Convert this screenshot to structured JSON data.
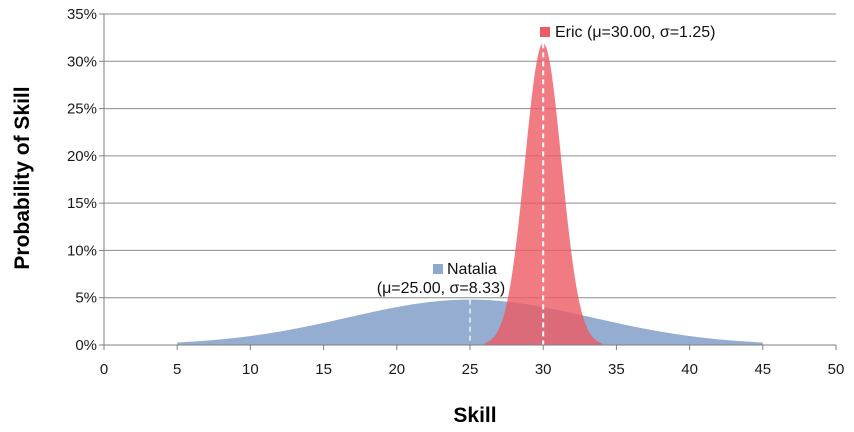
{
  "chart_data": {
    "type": "area",
    "title": "",
    "xlabel": "Skill",
    "ylabel": "Probability of Skill",
    "xlim": [
      0,
      50
    ],
    "ylim": [
      0,
      0.35
    ],
    "x_ticks": [
      "0",
      "5",
      "10",
      "15",
      "20",
      "25",
      "30",
      "35",
      "40",
      "45",
      "50"
    ],
    "y_ticks": [
      "0%",
      "5%",
      "10%",
      "15%",
      "20%",
      "25%",
      "30%",
      "35%"
    ],
    "grid": "horizontal",
    "series": [
      {
        "name": "Natalia",
        "label_line1": "Natalia",
        "label_line2": "(μ=25.00, σ=8.33)",
        "mu": 25.0,
        "sigma": 8.33,
        "x_range": [
          5,
          45
        ],
        "peak": 0.048,
        "color": "#8EA9CD"
      },
      {
        "name": "Eric",
        "label_line1": "Eric (μ=30.00, σ=1.25)",
        "mu": 30.0,
        "sigma": 1.25,
        "x_range": [
          26,
          34
        ],
        "peak": 0.319,
        "color": "#EE5A64"
      }
    ]
  }
}
